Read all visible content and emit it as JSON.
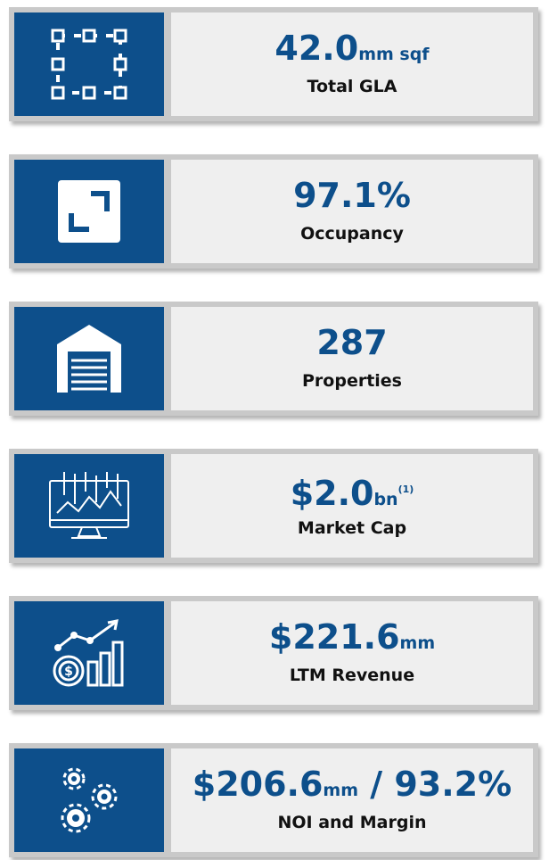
{
  "cards": [
    {
      "value": "42.0",
      "unit": "mm sqf",
      "label": "Total GLA"
    },
    {
      "value": "97.1%",
      "label": "Occupancy"
    },
    {
      "value": "287",
      "label": "Properties"
    },
    {
      "value": "$2.0",
      "unit": "bn",
      "note": "(1)",
      "label": "Market Cap"
    },
    {
      "value": "$221.6",
      "unit": "mm",
      "label": "LTM Revenue"
    },
    {
      "value": "$206.6",
      "unit": "mm",
      "extra": " / 93.2%",
      "label": "NOI and Margin"
    }
  ]
}
